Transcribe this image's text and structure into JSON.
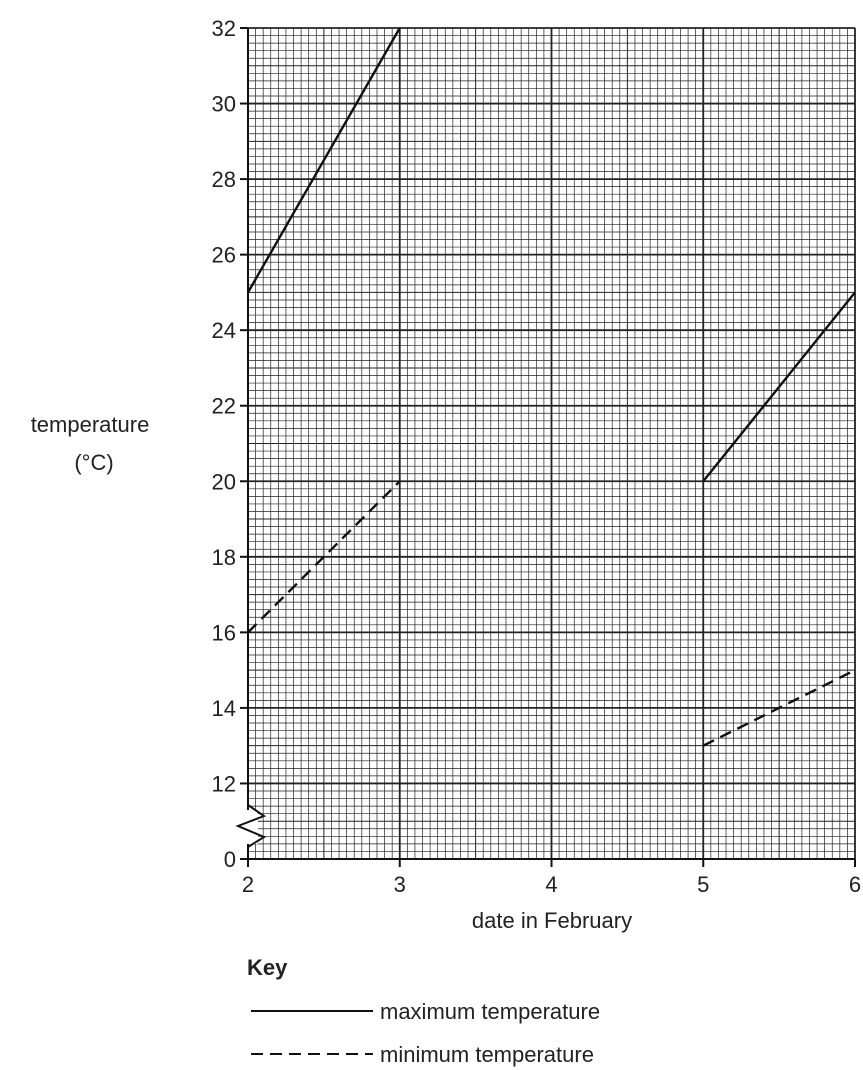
{
  "chart_data": {
    "type": "line",
    "title": "",
    "xlabel": "date in February",
    "ylabel_line1": "temperature",
    "ylabel_line2": "(°C)",
    "xlim": [
      2,
      6
    ],
    "ylim_display": [
      10,
      32
    ],
    "axis_break": true,
    "x_ticks": [
      2,
      3,
      4,
      5,
      6
    ],
    "y_ticks": [
      0,
      12,
      14,
      16,
      18,
      20,
      22,
      24,
      26,
      28,
      30,
      32
    ],
    "grid": true,
    "series": [
      {
        "name": "maximum temperature",
        "style": "solid",
        "segments": [
          [
            [
              2,
              25
            ],
            [
              3,
              32
            ]
          ],
          [
            [
              5,
              20
            ],
            [
              6,
              25
            ]
          ]
        ]
      },
      {
        "name": "minimum temperature",
        "style": "dashed",
        "segments": [
          [
            [
              2,
              16
            ],
            [
              3,
              20
            ]
          ],
          [
            [
              5,
              13
            ],
            [
              6,
              15
            ]
          ]
        ]
      }
    ],
    "legend": {
      "title": "Key",
      "placement": "bottom"
    },
    "line_color": "#111111",
    "grid_color": "#222222"
  }
}
